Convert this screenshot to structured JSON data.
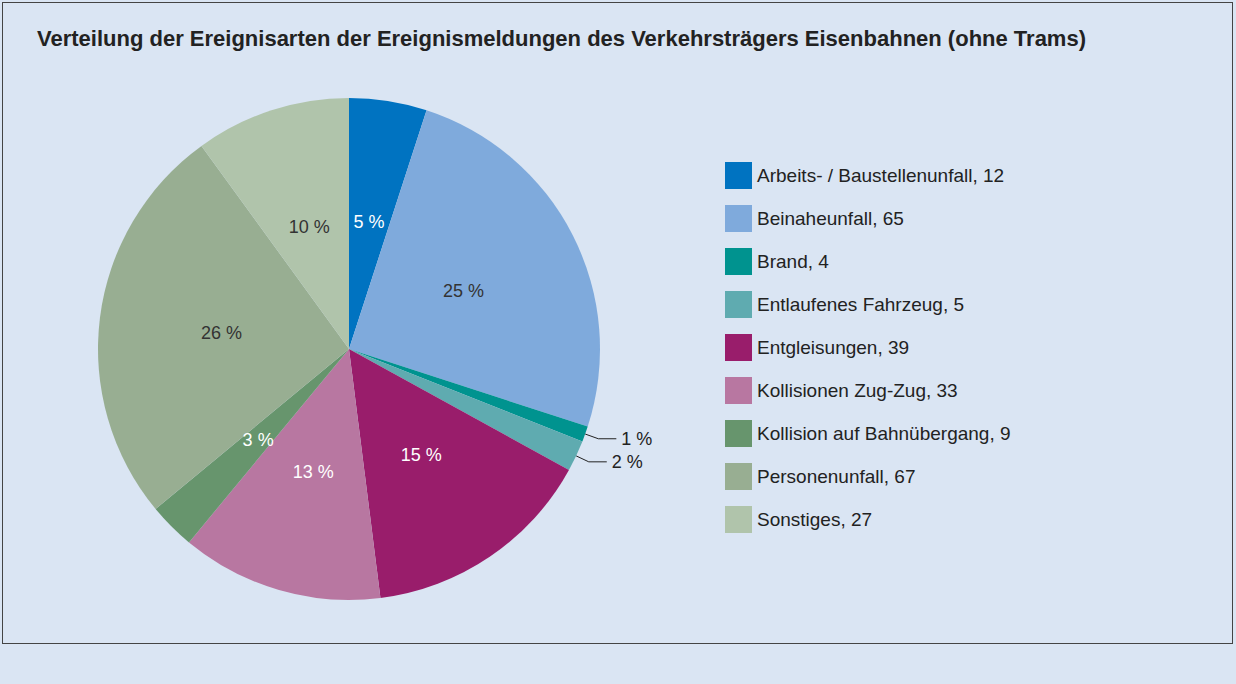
{
  "chart_data": {
    "type": "pie",
    "title": "Verteilung der Ereignisarten der Ereignismeldungen des Verkehrsträgers Eisenbahnen (ohne Trams)",
    "categories": [
      "Arbeits- / Baustellenunfall, 12",
      "Beinaheunfall, 65",
      "Brand, 4",
      "Entlaufenes Fahrzeug, 5",
      "Entgleisungen, 39",
      "Kollisionen Zug-Zug, 33",
      "Kollision auf Bahnübergang, 9",
      "Personenunfall, 67",
      "Sonstiges, 27"
    ],
    "values": [
      5,
      25,
      1,
      2,
      15,
      13,
      3,
      26,
      10
    ],
    "value_labels": [
      "5 %",
      "25 %",
      "1 %",
      "2 %",
      "15 %",
      "13 %",
      "3 %",
      "26 %",
      "10 %"
    ],
    "colors": [
      "#0073c1",
      "#7faadc",
      "#00938f",
      "#5fabb0",
      "#991d6b",
      "#b877a1",
      "#67956d",
      "#98ae92",
      "#b0c4ab"
    ],
    "data_labels": true,
    "legend": "right"
  }
}
